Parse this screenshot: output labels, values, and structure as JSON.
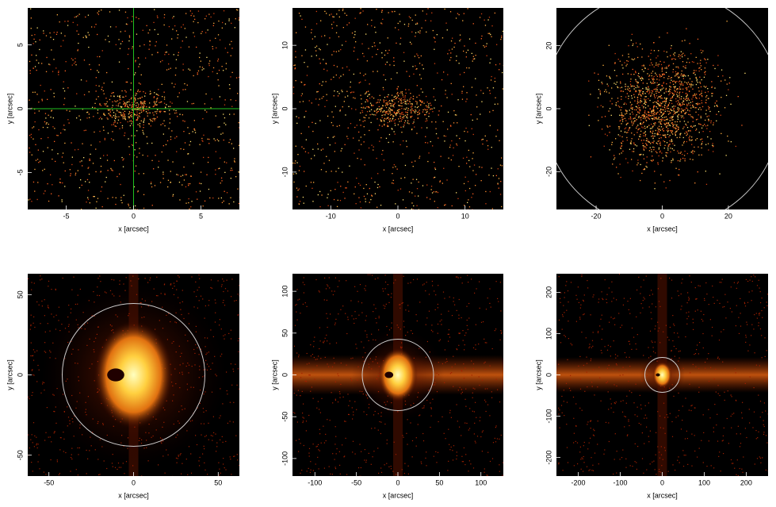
{
  "chart_data": [
    {
      "type": "image",
      "x_label": "x [arcsec]",
      "y_label": "y [arcsec]",
      "xlim": [
        -7.85,
        7.85
      ],
      "ylim": [
        -7.9,
        7.9
      ],
      "xticks": [
        -5,
        0,
        5
      ],
      "yticks": [
        -5,
        0,
        5
      ]
    },
    {
      "type": "image",
      "x_label": "x [arcsec]",
      "y_label": "y [arcsec]",
      "xlim": [
        -15.7,
        15.7
      ],
      "ylim": [
        -15.9,
        15.9
      ],
      "xticks": [
        -10,
        0,
        10
      ],
      "yticks": [
        -10,
        0,
        10
      ]
    },
    {
      "type": "image",
      "x_label": "x [arcsec]",
      "y_label": "y [arcsec]",
      "xlim": [
        -32,
        32
      ],
      "ylim": [
        -32,
        32
      ],
      "xticks": [
        -20,
        0,
        20
      ],
      "yticks": [
        -20,
        0,
        20
      ]
    },
    {
      "type": "image",
      "x_label": "x [arcsec]",
      "y_label": "y [arcsec]",
      "xlim": [
        -62.5,
        62.5
      ],
      "ylim": [
        -63,
        63
      ],
      "xticks": [
        -50,
        0,
        50
      ],
      "yticks": [
        -50,
        0,
        50
      ]
    },
    {
      "type": "image",
      "x_label": "x [arcsec]",
      "y_label": "y [arcsec]",
      "xlim": [
        -127,
        127
      ],
      "ylim": [
        -121,
        121
      ],
      "xticks": [
        -100,
        -50,
        0,
        50,
        100
      ],
      "yticks": [
        -100,
        -50,
        0,
        50,
        100
      ]
    },
    {
      "type": "image",
      "x_label": "x [arcsec]",
      "y_label": "y [arcsec]",
      "xlim": [
        -252,
        252
      ],
      "ylim": [
        -245,
        245
      ],
      "xticks": [
        -200,
        -100,
        0,
        100,
        200
      ],
      "yticks": [
        -200,
        -100,
        0,
        100,
        200
      ]
    }
  ]
}
